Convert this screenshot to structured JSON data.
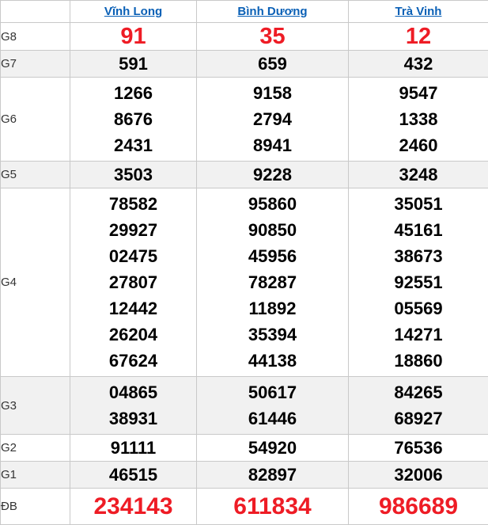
{
  "colors": {
    "red": "#ee1c25",
    "blue": "#0a60b6",
    "stripe": "#f1f1f1",
    "border": "#c9c9c9"
  },
  "table": {
    "columns": [
      {
        "id": "vinh-long",
        "label": "Vĩnh Long"
      },
      {
        "id": "binh-duong",
        "label": "Bình Dương"
      },
      {
        "id": "tra-vinh",
        "label": "Trà Vinh"
      }
    ],
    "rows": [
      {
        "id": "G8",
        "label": "G8",
        "cells": [
          [
            "91"
          ],
          [
            "35"
          ],
          [
            "12"
          ]
        ]
      },
      {
        "id": "G7",
        "label": "G7",
        "cells": [
          [
            "591"
          ],
          [
            "659"
          ],
          [
            "432"
          ]
        ]
      },
      {
        "id": "G6",
        "label": "G6",
        "cells": [
          [
            "1266",
            "8676",
            "2431"
          ],
          [
            "9158",
            "2794",
            "8941"
          ],
          [
            "9547",
            "1338",
            "2460"
          ]
        ]
      },
      {
        "id": "G5",
        "label": "G5",
        "cells": [
          [
            "3503"
          ],
          [
            "9228"
          ],
          [
            "3248"
          ]
        ]
      },
      {
        "id": "G4",
        "label": "G4",
        "cells": [
          [
            "78582",
            "29927",
            "02475",
            "27807",
            "12442",
            "26204",
            "67624"
          ],
          [
            "95860",
            "90850",
            "45956",
            "78287",
            "11892",
            "35394",
            "44138"
          ],
          [
            "35051",
            "45161",
            "38673",
            "92551",
            "05569",
            "14271",
            "18860"
          ]
        ]
      },
      {
        "id": "G3",
        "label": "G3",
        "cells": [
          [
            "04865",
            "38931"
          ],
          [
            "50617",
            "61446"
          ],
          [
            "84265",
            "68927"
          ]
        ]
      },
      {
        "id": "G2",
        "label": "G2",
        "cells": [
          [
            "91111"
          ],
          [
            "54920"
          ],
          [
            "76536"
          ]
        ]
      },
      {
        "id": "G1",
        "label": "G1",
        "cells": [
          [
            "46515"
          ],
          [
            "82897"
          ],
          [
            "32006"
          ]
        ]
      },
      {
        "id": "DB",
        "label": "ĐB",
        "cells": [
          [
            "234143"
          ],
          [
            "611834"
          ],
          [
            "986689"
          ]
        ]
      }
    ]
  }
}
